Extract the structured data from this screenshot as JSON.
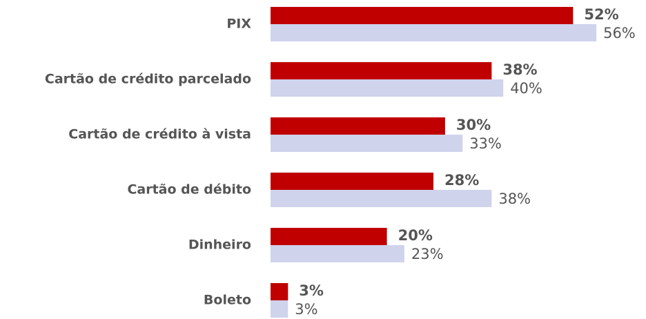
{
  "chart_data": {
    "type": "bar",
    "orientation": "horizontal",
    "categories": [
      "PIX",
      "Cartão de crédito parcelado",
      "Cartão de crédito à vista",
      "Cartão de débito",
      "Dinheiro",
      "Boleto"
    ],
    "series": [
      {
        "color": "#c00000",
        "values": [
          52,
          38,
          30,
          28,
          20,
          3
        ],
        "value_labels": [
          "52%",
          "38%",
          "30%",
          "28%",
          "20%",
          "3%"
        ]
      },
      {
        "color": "#cfd3ec",
        "values": [
          56,
          40,
          33,
          38,
          23,
          3
        ],
        "value_labels": [
          "56%",
          "40%",
          "33%",
          "38%",
          "23%",
          "3%"
        ]
      }
    ]
  }
}
